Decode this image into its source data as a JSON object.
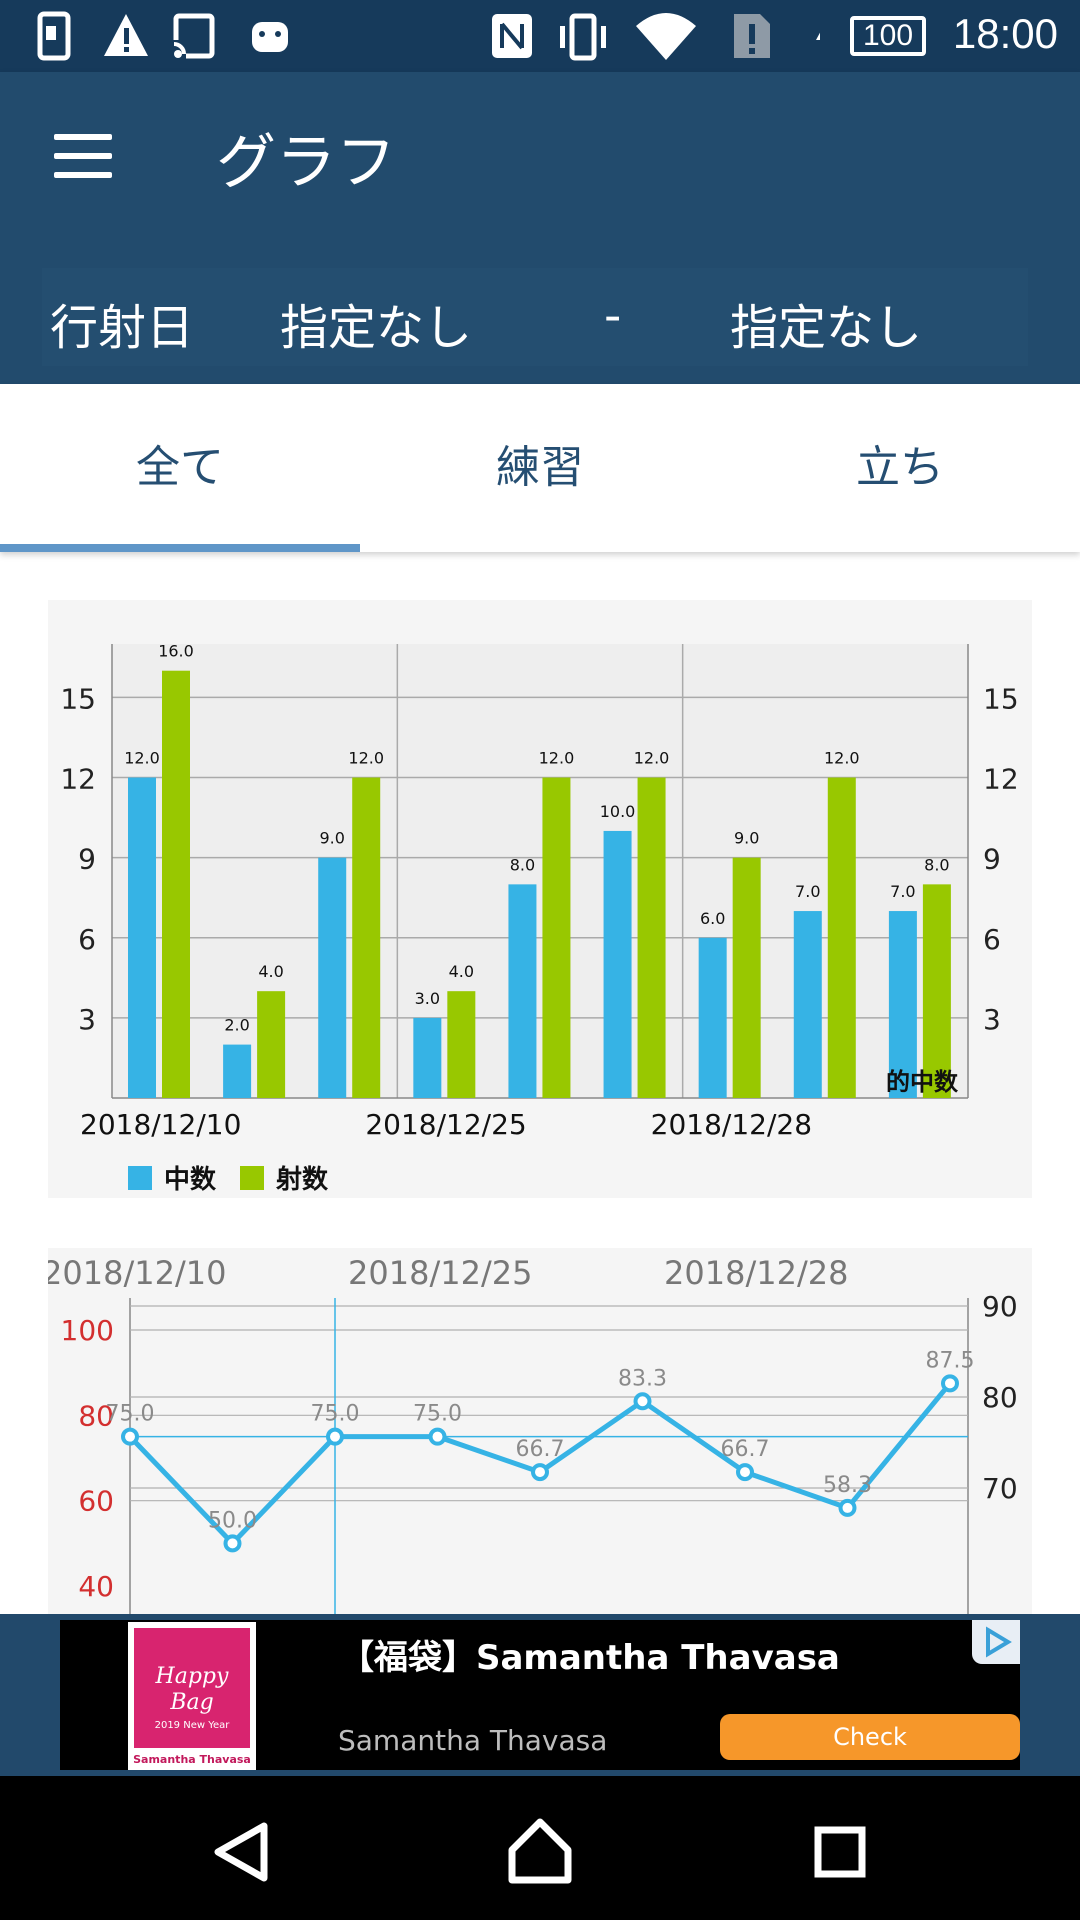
{
  "status_bar": {
    "time": "18:00",
    "battery": "100",
    "icons": [
      "sim-icon",
      "warning-icon",
      "cast-icon",
      "android-icon",
      "nfc-icon",
      "vibrate-icon",
      "wifi-icon",
      "sd-alert-icon",
      "charging-icon",
      "battery-icon"
    ]
  },
  "app_bar": {
    "title": "グラフ",
    "menu_icon": "hamburger-icon"
  },
  "filter": {
    "label": "行射日",
    "from": "指定なし",
    "separator": "-",
    "to": "指定なし"
  },
  "tabs": [
    {
      "label": "全て",
      "selected": true
    },
    {
      "label": "練習",
      "selected": false
    },
    {
      "label": "立ち",
      "selected": false
    }
  ],
  "colors": {
    "blue": "#36b3e5",
    "green": "#98c800",
    "appbar": "#224b6d",
    "status": "#163a5b",
    "accent_red": "#d32f2f",
    "ad_button": "#f6972a"
  },
  "chart_data": [
    {
      "type": "bar",
      "x_labels": [
        "2018/12/10",
        "2018/12/25",
        "2018/12/28"
      ],
      "y_ticks": [
        3,
        6,
        9,
        12,
        15
      ],
      "ylim": [
        0,
        17
      ],
      "corner_label": "的中数",
      "series": [
        {
          "name": "中数",
          "color": "#36b3e5",
          "values": [
            12.0,
            2.0,
            9.0,
            3.0,
            8.0,
            10.0,
            6.0,
            7.0,
            7.0
          ]
        },
        {
          "name": "射数",
          "color": "#98c800",
          "values": [
            16.0,
            4.0,
            12.0,
            4.0,
            12.0,
            12.0,
            9.0,
            12.0,
            8.0
          ]
        }
      ],
      "value_labels": {
        "中数": [
          "12.0",
          "2.0",
          "9.0",
          "3.0",
          "8.0",
          "10.0",
          "6.0",
          "7.0",
          "7.0"
        ],
        "射数": [
          "16.0",
          "4.0",
          "12.0",
          "4.0",
          "12.0",
          "12.0",
          "9.0",
          "12.0",
          "8.0"
        ]
      },
      "legend": [
        "中数",
        "射数"
      ],
      "grid": true
    },
    {
      "type": "line",
      "x_labels": [
        "2018/12/10",
        "2018/12/25",
        "2018/12/28"
      ],
      "values": [
        75.0,
        50.0,
        75.0,
        75.0,
        66.7,
        83.3,
        66.7,
        58.3,
        87.5
      ],
      "value_labels": [
        "75.0",
        "50.0",
        "75.0",
        "75.0",
        "66.7",
        "83.3",
        "66.7",
        "58.3",
        "87.5"
      ],
      "left_ticks": [
        40,
        60,
        80,
        100
      ],
      "right_ticks": [
        70,
        80,
        90
      ],
      "left_ylim": [
        40,
        110
      ],
      "right_ylim": [
        62.5,
        90
      ],
      "limit_line": 75,
      "grid": true
    }
  ],
  "ad": {
    "title": "【福袋】Samantha Thavasa",
    "subtitle": "Samantha Thavasa",
    "button": "Check",
    "logo_text": "Happy Bag",
    "logo_small": "2019 New Year",
    "logo_brand": "Samantha Thavasa",
    "choice_icon": "ad-choices-icon"
  },
  "nav": {
    "back": "back-icon",
    "home": "home-icon",
    "recents": "recents-icon"
  }
}
